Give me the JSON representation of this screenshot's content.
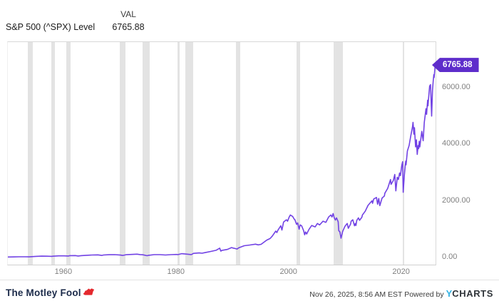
{
  "header": {
    "series_label": "S&P 500 (^SPX) Level",
    "col_header": "VAL",
    "value": "6765.88"
  },
  "chart_data": {
    "type": "line",
    "title": "S&P 500 (^SPX) Level",
    "xlabel": "",
    "ylabel": "",
    "xlim": [
      1950,
      2026
    ],
    "ylim": [
      0,
      7600
    ],
    "grid": false,
    "legend": "none",
    "line_color": "#7142e4",
    "tag_color": "#5e2dcb",
    "band_color": "#e3e3e3",
    "end_label": "6765.88",
    "x_ticks": [
      {
        "value": 1960,
        "label": "1960"
      },
      {
        "value": 1980,
        "label": "1980"
      },
      {
        "value": 2000,
        "label": "2000"
      },
      {
        "value": 2020,
        "label": "2020"
      }
    ],
    "y_ticks": [
      {
        "value": 0,
        "label": "0.00"
      },
      {
        "value": 2000,
        "label": "2000.00"
      },
      {
        "value": 4000,
        "label": "4000.00"
      },
      {
        "value": 6000,
        "label": "6000.00"
      }
    ],
    "recession_bands": [
      [
        1953.58,
        1954.42
      ],
      [
        1957.67,
        1958.33
      ],
      [
        1960.33,
        1961.17
      ],
      [
        1969.92,
        1970.92
      ],
      [
        1973.92,
        1975.25
      ],
      [
        1980.08,
        1980.58
      ],
      [
        1981.58,
        1982.92
      ],
      [
        1990.58,
        1991.25
      ],
      [
        2001.25,
        2001.92
      ],
      [
        2007.92,
        2009.5
      ],
      [
        2020.17,
        2020.33
      ]
    ],
    "series": [
      {
        "name": "S&P 500 (^SPX) Level",
        "color": "#7142e4",
        "points": [
          [
            1950,
            17
          ],
          [
            1951,
            21
          ],
          [
            1952,
            24
          ],
          [
            1953,
            24
          ],
          [
            1953.8,
            23
          ],
          [
            1954,
            27
          ],
          [
            1955,
            40
          ],
          [
            1956,
            47
          ],
          [
            1957,
            45
          ],
          [
            1957.8,
            40
          ],
          [
            1958,
            45
          ],
          [
            1959,
            57
          ],
          [
            1960,
            57
          ],
          [
            1960.8,
            53
          ],
          [
            1961,
            65
          ],
          [
            1962,
            68
          ],
          [
            1962.5,
            54
          ],
          [
            1963,
            65
          ],
          [
            1964,
            79
          ],
          [
            1965,
            87
          ],
          [
            1966,
            92
          ],
          [
            1966.7,
            74
          ],
          [
            1967,
            88
          ],
          [
            1968,
            99
          ],
          [
            1969,
            100
          ],
          [
            1970,
            85
          ],
          [
            1970.4,
            72
          ],
          [
            1971,
            98
          ],
          [
            1972,
            109
          ],
          [
            1972.95,
            118
          ],
          [
            1973.5,
            104
          ],
          [
            1974,
            95
          ],
          [
            1974.75,
            63
          ],
          [
            1975,
            77
          ],
          [
            1976,
            100
          ],
          [
            1977,
            101
          ],
          [
            1978,
            89
          ],
          [
            1979,
            100
          ],
          [
            1980,
            108
          ],
          [
            1980.2,
            100
          ],
          [
            1980.9,
            135
          ],
          [
            1981,
            133
          ],
          [
            1982,
            117
          ],
          [
            1982.6,
            102
          ],
          [
            1983,
            145
          ],
          [
            1984,
            160
          ],
          [
            1984.5,
            150
          ],
          [
            1985,
            172
          ],
          [
            1986,
            212
          ],
          [
            1987,
            255
          ],
          [
            1987.65,
            330
          ],
          [
            1987.85,
            225
          ],
          [
            1988,
            250
          ],
          [
            1989,
            285
          ],
          [
            1989.75,
            350
          ],
          [
            1990,
            335
          ],
          [
            1990.75,
            300
          ],
          [
            1991,
            340
          ],
          [
            1992,
            415
          ],
          [
            1993,
            440
          ],
          [
            1994,
            470
          ],
          [
            1994.5,
            445
          ],
          [
            1995,
            465
          ],
          [
            1996,
            615
          ],
          [
            1996.6,
            670
          ],
          [
            1997,
            760
          ],
          [
            1997.6,
            930
          ],
          [
            1997.8,
            880
          ],
          [
            1998,
            965
          ],
          [
            1998.5,
            1120
          ],
          [
            1998.7,
            970
          ],
          [
            1999,
            1250
          ],
          [
            1999.5,
            1330
          ],
          [
            1999.7,
            1280
          ],
          [
            2000,
            1430
          ],
          [
            2000.2,
            1500
          ],
          [
            2000.6,
            1450
          ],
          [
            2000.9,
            1350
          ],
          [
            2001,
            1340
          ],
          [
            2001.3,
            1170
          ],
          [
            2001.5,
            1220
          ],
          [
            2001.75,
            1000
          ],
          [
            2001.95,
            1150
          ],
          [
            2002.2,
            1120
          ],
          [
            2002.55,
            950
          ],
          [
            2002.75,
            800
          ],
          [
            2002.9,
            900
          ],
          [
            2003.1,
            830
          ],
          [
            2003.5,
            990
          ],
          [
            2004,
            1130
          ],
          [
            2004.6,
            1080
          ],
          [
            2005,
            1200
          ],
          [
            2005.4,
            1150
          ],
          [
            2006,
            1280
          ],
          [
            2006.5,
            1240
          ],
          [
            2007,
            1430
          ],
          [
            2007.4,
            1500
          ],
          [
            2007.6,
            1430
          ],
          [
            2007.8,
            1550
          ],
          [
            2008,
            1400
          ],
          [
            2008.2,
            1320
          ],
          [
            2008.4,
            1400
          ],
          [
            2008.7,
            1260
          ],
          [
            2008.8,
            950
          ],
          [
            2009,
            900
          ],
          [
            2009.2,
            680
          ],
          [
            2009.5,
            920
          ],
          [
            2009.9,
            1100
          ],
          [
            2010.1,
            1150
          ],
          [
            2010.3,
            1200
          ],
          [
            2010.5,
            1030
          ],
          [
            2010.9,
            1180
          ],
          [
            2011,
            1280
          ],
          [
            2011.3,
            1330
          ],
          [
            2011.6,
            1120
          ],
          [
            2011.75,
            1200
          ],
          [
            2011.85,
            1130
          ],
          [
            2012,
            1310
          ],
          [
            2012.3,
            1400
          ],
          [
            2012.5,
            1310
          ],
          [
            2012.9,
            1420
          ],
          [
            2013,
            1500
          ],
          [
            2013.5,
            1630
          ],
          [
            2014,
            1840
          ],
          [
            2014.7,
            2000
          ],
          [
            2014.8,
            1910
          ],
          [
            2015,
            2060
          ],
          [
            2015.5,
            2120
          ],
          [
            2015.7,
            1880
          ],
          [
            2015.9,
            2080
          ],
          [
            2016.1,
            1830
          ],
          [
            2016.5,
            2100
          ],
          [
            2016.9,
            2170
          ],
          [
            2017,
            2270
          ],
          [
            2017.5,
            2440
          ],
          [
            2018,
            2750
          ],
          [
            2018.1,
            2580
          ],
          [
            2018.5,
            2720
          ],
          [
            2018.75,
            2930
          ],
          [
            2018.95,
            2350
          ],
          [
            2019.2,
            2830
          ],
          [
            2019.4,
            2750
          ],
          [
            2019.6,
            2980
          ],
          [
            2019.75,
            2890
          ],
          [
            2020,
            3250
          ],
          [
            2020.15,
            3380
          ],
          [
            2020.25,
            2300
          ],
          [
            2020.45,
            2900
          ],
          [
            2020.6,
            3230
          ],
          [
            2020.7,
            3400
          ],
          [
            2020.75,
            3270
          ],
          [
            2021,
            3760
          ],
          [
            2021.3,
            3950
          ],
          [
            2021.6,
            4300
          ],
          [
            2021.9,
            4600
          ],
          [
            2022,
            4770
          ],
          [
            2022.15,
            4350
          ],
          [
            2022.25,
            4580
          ],
          [
            2022.45,
            3900
          ],
          [
            2022.6,
            4150
          ],
          [
            2022.75,
            3640
          ],
          [
            2022.9,
            3950
          ],
          [
            2023,
            3840
          ],
          [
            2023.1,
            4100
          ],
          [
            2023.2,
            3900
          ],
          [
            2023.55,
            4450
          ],
          [
            2023.8,
            4120
          ],
          [
            2024,
            4770
          ],
          [
            2024.3,
            5250
          ],
          [
            2024.4,
            5050
          ],
          [
            2024.6,
            5550
          ],
          [
            2024.65,
            5350
          ],
          [
            2024.95,
            6050
          ],
          [
            2025.1,
            6100
          ],
          [
            2025.15,
            5850
          ],
          [
            2025.3,
            4990
          ],
          [
            2025.45,
            5900
          ],
          [
            2025.6,
            6250
          ],
          [
            2025.7,
            6450
          ],
          [
            2025.75,
            6350
          ],
          [
            2025.92,
            6765.88
          ]
        ]
      }
    ]
  },
  "footer": {
    "logo_text": "The Motley Fool",
    "timestamp": "Nov 26, 2025, 8:56 AM EST",
    "powered_by": "Powered by",
    "brand_y": "Y",
    "brand_charts": "CHARTS"
  }
}
